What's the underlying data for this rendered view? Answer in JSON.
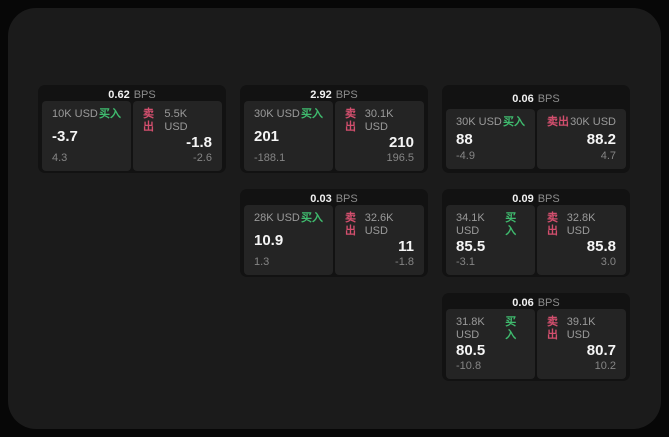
{
  "colors": {
    "page_bg": "#070707",
    "panel_bg": "#1b1b1b",
    "card_bg": "#121212",
    "pane_bg": "#242424",
    "buy_green": "#3fbb6e",
    "sell_red": "#d34f6e",
    "text_primary": "#f5f5f5",
    "text_secondary": "#9a9a9a"
  },
  "unit_label": "BPS",
  "buy_label": "买入",
  "sell_label": "卖出",
  "cards": [
    {
      "bps": "0.62",
      "buy": {
        "amount": "10K USD",
        "value": "-3.7",
        "sub": "4.3"
      },
      "sell": {
        "amount": "5.5K USD",
        "value": "-1.8",
        "sub": "-2.6"
      }
    },
    {
      "bps": "2.92",
      "buy": {
        "amount": "30K USD",
        "value": "201",
        "sub": "-188.1"
      },
      "sell": {
        "amount": "30.1K USD",
        "value": "210",
        "sub": "196.5"
      }
    },
    {
      "bps": "0.06",
      "buy": {
        "amount": "30K USD",
        "value": "88",
        "sub": "-4.9"
      },
      "sell": {
        "amount": "30K USD",
        "value": "88.2",
        "sub": "4.7"
      }
    },
    {
      "bps": "0.03",
      "buy": {
        "amount": "28K USD",
        "value": "10.9",
        "sub": "1.3"
      },
      "sell": {
        "amount": "32.6K USD",
        "value": "11",
        "sub": "-1.8"
      }
    },
    {
      "bps": "0.09",
      "buy": {
        "amount": "34.1K USD",
        "value": "85.5",
        "sub": "-3.1"
      },
      "sell": {
        "amount": "32.8K USD",
        "value": "85.8",
        "sub": "3.0"
      }
    },
    {
      "bps": "0.06",
      "buy": {
        "amount": "31.8K USD",
        "value": "80.5",
        "sub": "-10.8"
      },
      "sell": {
        "amount": "39.1K USD",
        "value": "80.7",
        "sub": "10.2"
      }
    }
  ]
}
